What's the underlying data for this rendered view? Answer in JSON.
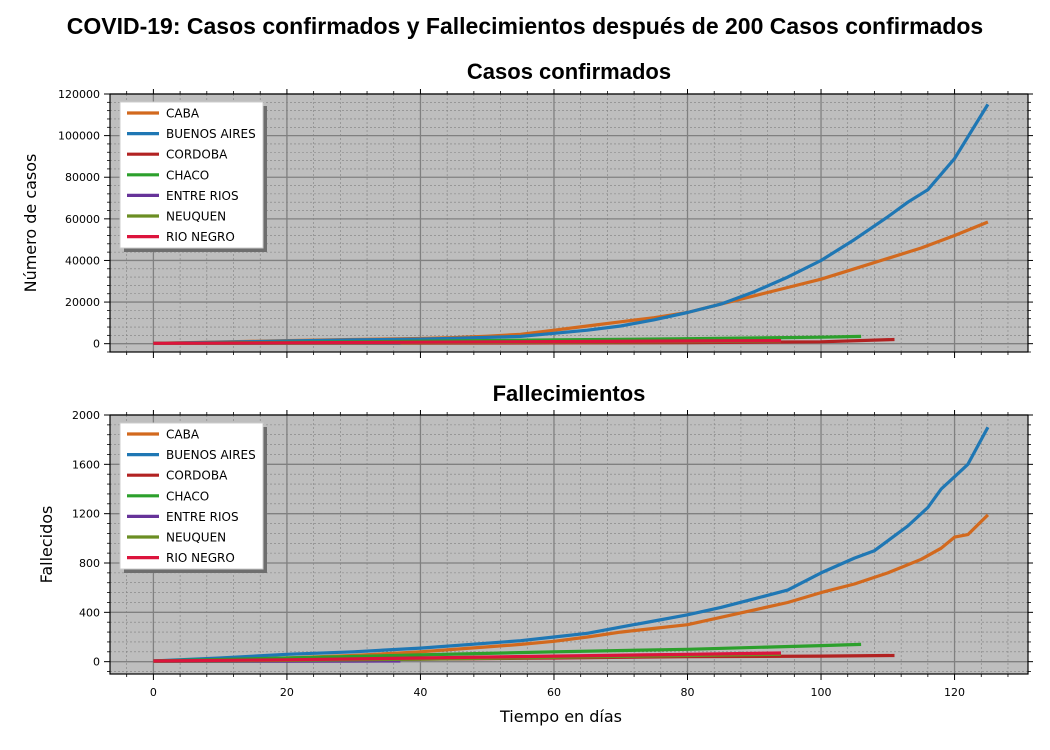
{
  "suptitle": "COVID-19: Casos confirmados y Fallecimientos después de 200 Casos confirmados",
  "colors": {
    "plot_bg": "#bebebe",
    "major_grid": "#808080",
    "minor_grid": "#808080",
    "CABA": "#d2691e",
    "BUENOS AIRES": "#1f77b4",
    "CORDOBA": "#b22222",
    "CHACO": "#2ca02c",
    "ENTRE RIOS": "#663399",
    "NEUQUEN": "#6b8e23",
    "RIO NEGRO": "#dc143c"
  },
  "chart_data": [
    {
      "type": "line",
      "title": "Casos confirmados",
      "xlabel": "",
      "ylabel": "Número de casos",
      "xlim": [
        -6.5,
        131
      ],
      "ylim": [
        -4000,
        120000
      ],
      "xticks": [
        0,
        20,
        40,
        60,
        80,
        100,
        120
      ],
      "yticks": [
        0,
        20000,
        40000,
        60000,
        80000,
        100000,
        120000
      ],
      "xtick_labels_visible": false,
      "grid": true,
      "legend_position": "upper-left",
      "series": [
        {
          "name": "CABA",
          "x": [
            0,
            10,
            20,
            30,
            40,
            45,
            50,
            55,
            60,
            65,
            70,
            75,
            80,
            85,
            90,
            95,
            100,
            105,
            110,
            115,
            120,
            125
          ],
          "y": [
            200,
            800,
            1500,
            2000,
            2500,
            2900,
            3600,
            4500,
            6500,
            8500,
            10500,
            12500,
            15000,
            19000,
            23000,
            27000,
            31000,
            36000,
            41000,
            46000,
            52000,
            58500
          ]
        },
        {
          "name": "BUENOS AIRES",
          "x": [
            0,
            10,
            20,
            30,
            40,
            45,
            50,
            55,
            60,
            65,
            70,
            75,
            80,
            85,
            90,
            95,
            100,
            105,
            110,
            113,
            116,
            120,
            125
          ],
          "y": [
            200,
            700,
            1300,
            1800,
            2200,
            2600,
            3000,
            3500,
            5000,
            6500,
            8500,
            11500,
            15000,
            19000,
            25000,
            32000,
            40000,
            50000,
            61000,
            68000,
            74000,
            89000,
            115000
          ]
        },
        {
          "name": "CORDOBA",
          "x": [
            0,
            20,
            40,
            60,
            80,
            100,
            111
          ],
          "y": [
            200,
            250,
            300,
            380,
            500,
            900,
            2000
          ]
        },
        {
          "name": "CHACO",
          "x": [
            0,
            20,
            40,
            60,
            80,
            100,
            106
          ],
          "y": [
            200,
            600,
            1200,
            1800,
            2400,
            3100,
            3500
          ]
        },
        {
          "name": "ENTRE RIOS",
          "x": [
            0,
            15,
            30,
            37
          ],
          "y": [
            200,
            220,
            240,
            260
          ]
        },
        {
          "name": "NEUQUEN",
          "x": [
            0,
            20,
            40,
            60,
            80,
            94
          ],
          "y": [
            200,
            300,
            450,
            700,
            1000,
            1300
          ]
        },
        {
          "name": "RIO NEGRO",
          "x": [
            0,
            20,
            40,
            60,
            80,
            94
          ],
          "y": [
            200,
            400,
            700,
            1000,
            1300,
            1500
          ]
        }
      ]
    },
    {
      "type": "line",
      "title": "Fallecimientos",
      "xlabel": "Tiempo en días",
      "ylabel": "Fallecidos",
      "xlim": [
        -6.5,
        131
      ],
      "ylim": [
        -100,
        2000
      ],
      "xticks": [
        0,
        20,
        40,
        60,
        80,
        100,
        120
      ],
      "yticks": [
        0,
        400,
        800,
        1200,
        1600,
        2000
      ],
      "xtick_labels_visible": true,
      "grid": true,
      "legend_position": "upper-left",
      "series": [
        {
          "name": "CABA",
          "x": [
            0,
            10,
            20,
            30,
            40,
            50,
            55,
            60,
            65,
            70,
            75,
            80,
            85,
            90,
            95,
            100,
            105,
            110,
            115,
            118,
            120,
            122,
            125
          ],
          "y": [
            5,
            15,
            30,
            50,
            80,
            120,
            140,
            165,
            200,
            240,
            270,
            300,
            360,
            420,
            480,
            560,
            630,
            720,
            830,
            920,
            1010,
            1030,
            1190
          ]
        },
        {
          "name": "BUENOS AIRES",
          "x": [
            0,
            10,
            20,
            30,
            40,
            50,
            55,
            60,
            65,
            70,
            75,
            80,
            85,
            90,
            95,
            100,
            105,
            108,
            110,
            113,
            116,
            118,
            120,
            122,
            125
          ],
          "y": [
            5,
            30,
            60,
            80,
            110,
            150,
            170,
            200,
            230,
            280,
            330,
            380,
            440,
            510,
            580,
            720,
            840,
            900,
            980,
            1100,
            1250,
            1400,
            1500,
            1600,
            1900
          ]
        },
        {
          "name": "CORDOBA",
          "x": [
            0,
            20,
            40,
            60,
            80,
            100,
            111
          ],
          "y": [
            5,
            10,
            20,
            30,
            40,
            45,
            50
          ]
        },
        {
          "name": "CHACO",
          "x": [
            0,
            20,
            40,
            60,
            80,
            100,
            106
          ],
          "y": [
            5,
            30,
            55,
            80,
            100,
            130,
            140
          ]
        },
        {
          "name": "ENTRE RIOS",
          "x": [
            0,
            15,
            30,
            37
          ],
          "y": [
            2,
            3,
            4,
            5
          ]
        },
        {
          "name": "NEUQUEN",
          "x": [
            0,
            20,
            40,
            60,
            80,
            94
          ],
          "y": [
            3,
            10,
            20,
            35,
            50,
            60
          ]
        },
        {
          "name": "RIO NEGRO",
          "x": [
            0,
            20,
            40,
            60,
            80,
            94
          ],
          "y": [
            5,
            15,
            30,
            45,
            60,
            70
          ]
        }
      ]
    }
  ]
}
